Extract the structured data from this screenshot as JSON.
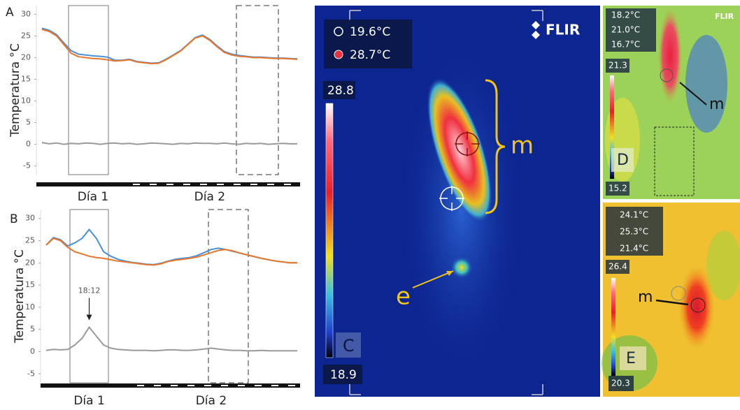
{
  "chart_data": [
    {
      "type": "line",
      "panel_label": "A",
      "y_label": "Temperatura °C",
      "categories": [
        null,
        null,
        null,
        null,
        null,
        null,
        null,
        "Día 1",
        null,
        null,
        null,
        null,
        null,
        null,
        null,
        null,
        null,
        null,
        null,
        null,
        null,
        null,
        null,
        "Día 2",
        null,
        null,
        null,
        null,
        null,
        null,
        null,
        null,
        null,
        null,
        null,
        null
      ],
      "series": [
        {
          "color": "#4a90d9",
          "values": [
            26.8,
            26.3,
            25.3,
            23.4,
            21.6,
            20.8,
            20.6,
            20.4,
            20.3,
            20.1,
            19.4,
            19.4,
            19.6,
            19.1,
            18.9,
            18.7,
            18.8,
            19.6,
            20.6,
            21.6,
            23.1,
            24.6,
            25.2,
            24.2,
            22.7,
            21.4,
            20.8,
            20.5,
            20.3,
            20.1,
            20.1,
            20.0,
            19.9,
            19.9,
            19.8,
            19.7
          ]
        },
        {
          "color": "#e8762b",
          "values": [
            26.5,
            26,
            25,
            23,
            21,
            20.2,
            20,
            19.8,
            19.7,
            19.5,
            19.2,
            19.3,
            19.5,
            19,
            18.8,
            18.6,
            18.7,
            19.5,
            20.5,
            21.5,
            23,
            24.5,
            25,
            24,
            22.5,
            21.2,
            20.6,
            20.3,
            20.2,
            20,
            20,
            19.9,
            19.8,
            19.8,
            19.7,
            19.6
          ]
        },
        {
          "color": "#9a9a9a",
          "values": [
            0.4,
            0.1,
            0.3,
            0.0,
            0.2,
            0.1,
            0.3,
            0.2,
            0.0,
            0.2,
            0.3,
            0.1,
            0.2,
            0.0,
            0.1,
            0.3,
            0.2,
            0.1,
            0.0,
            0.2,
            0.1,
            0.3,
            0.2,
            0.2,
            0.1,
            0.3,
            0.1,
            0.0,
            0.2,
            0.1,
            0.2,
            0.0,
            0.1,
            0.2,
            0.1,
            0.1
          ]
        }
      ],
      "ylim": [
        -7,
        32
      ],
      "yticks": [
        -5,
        0,
        5,
        10,
        15,
        20,
        25,
        30
      ]
    },
    {
      "type": "line",
      "panel_label": "B",
      "y_label": "Temperatura °C",
      "categories": [
        null,
        null,
        null,
        null,
        null,
        null,
        "Día 1",
        null,
        null,
        null,
        null,
        null,
        null,
        null,
        null,
        null,
        null,
        null,
        null,
        null,
        null,
        null,
        null,
        "Día 2",
        null,
        null,
        null,
        null,
        null,
        null,
        null,
        null,
        null,
        null,
        null,
        null
      ],
      "series": [
        {
          "color": "#4a90d9",
          "values": [
            24,
            25.7,
            25.2,
            23.8,
            24.5,
            25.5,
            27.5,
            25.5,
            22.5,
            21.5,
            20.8,
            20.4,
            20.1,
            19.9,
            19.7,
            19.6,
            19.9,
            20.4,
            20.8,
            21,
            21.2,
            21.6,
            22.3,
            23,
            23.3,
            23,
            22.6,
            22.2,
            21.8,
            21.4,
            21,
            20.7,
            20.4,
            20.2,
            20,
            20
          ]
        },
        {
          "color": "#e8762b",
          "values": [
            24,
            25.5,
            25,
            23.5,
            22.5,
            22,
            21.5,
            21.2,
            21,
            20.7,
            20.4,
            20.2,
            20,
            19.8,
            19.6,
            19.5,
            19.8,
            20.3,
            20.6,
            20.8,
            21,
            21.3,
            21.8,
            22.3,
            22.8,
            23,
            22.7,
            22.2,
            21.8,
            21.4,
            21,
            20.7,
            20.4,
            20.2,
            20,
            20
          ]
        },
        {
          "color": "#9a9a9a",
          "values": [
            0.3,
            0.5,
            0.4,
            0.5,
            1.5,
            3,
            5.5,
            3.5,
            1.5,
            0.8,
            0.5,
            0.4,
            0.3,
            0.3,
            0.3,
            0.2,
            0.3,
            0.4,
            0.4,
            0.3,
            0.3,
            0.4,
            0.6,
            0.8,
            0.6,
            0.4,
            0.3,
            0.3,
            0.2,
            0.2,
            0.3,
            0.2,
            0.2,
            0.2,
            0.2,
            0.2
          ]
        }
      ],
      "ylim": [
        -7,
        32
      ],
      "yticks": [
        -5,
        0,
        5,
        10,
        15,
        20,
        25,
        30
      ],
      "annotation": "18:12"
    }
  ],
  "thermal_panels": [
    {
      "label": "C",
      "markers": [
        "19.6°C",
        "28.7°C"
      ],
      "scale_max": "28.8",
      "scale_min": "18.9",
      "annotations": [
        "m",
        "e"
      ],
      "logo": "FLIR"
    },
    {
      "label": "D",
      "markers": [
        "18.2°C",
        "21.0°C",
        "16.7°C"
      ],
      "scale_max": "21.3",
      "scale_min": "15.2",
      "annotations": [
        "m"
      ],
      "logo": "FLIR"
    },
    {
      "label": "E",
      "markers": [
        "24.1°C",
        "25.3°C",
        "21.4°C"
      ],
      "scale_max": "26.4",
      "scale_min": "20.3",
      "annotations": [
        "m"
      ]
    }
  ]
}
